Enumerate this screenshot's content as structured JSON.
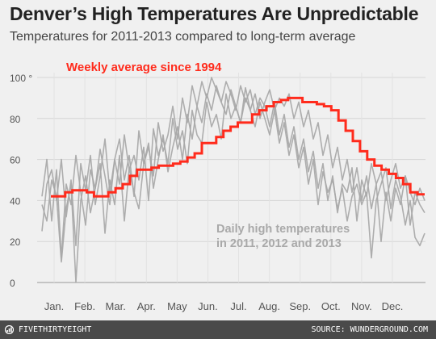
{
  "header": {
    "title": "Denver’s High Temperatures Are Unpredictable",
    "subtitle": "Temperatures for 2011-2013 compared to long-term average"
  },
  "footer": {
    "brand": "FIVETHIRTYEIGHT",
    "source": "SOURCE: WUNDERGROUND.COM",
    "logo_icon": "fivethirtyeight-logo-icon"
  },
  "chart_data": {
    "type": "line",
    "x_unit": "week of year",
    "xlim": [
      1,
      52
    ],
    "ylim": [
      0,
      100
    ],
    "y_ticks": [
      0,
      20,
      40,
      60,
      80,
      100
    ],
    "y_tick_labels": [
      "0",
      "20",
      "40",
      "60",
      "80",
      "100 °"
    ],
    "months": [
      "Jan.",
      "Feb.",
      "Mar.",
      "Apr.",
      "May",
      "Jun.",
      "Jul.",
      "Aug.",
      "Sep.",
      "Oct.",
      "Nov.",
      "Dec."
    ],
    "grid": true,
    "colors": {
      "average": "#ff2b1c",
      "daily": "#a9a9a9",
      "grid": "#d6d6d6"
    },
    "annotations": {
      "average_label": "Weekly average since 1994",
      "daily_label_line1": "Daily high temperatures",
      "daily_label_line2": "in 2011, 2012 and 2013"
    },
    "average_series": {
      "name": "Weekly average since 1994",
      "values": [
        42,
        42,
        44,
        45,
        45,
        44,
        42,
        42,
        44,
        46,
        48,
        52,
        55,
        55,
        56,
        57,
        57,
        58,
        59,
        61,
        63,
        68,
        68,
        71,
        74,
        76,
        78,
        78,
        82,
        84,
        86,
        88,
        89,
        90,
        90,
        88,
        88,
        87,
        86,
        84,
        79,
        74,
        69,
        64,
        60,
        57,
        55,
        53,
        51,
        48,
        44,
        43
      ]
    },
    "daily_series": [
      {
        "year": "2011",
        "values": [
          25,
          48,
          55,
          40,
          60,
          32,
          50,
          18,
          58,
          45,
          62,
          38,
          52,
          70,
          44,
          60,
          48,
          72,
          55,
          62,
          50,
          66,
          40,
          75,
          62,
          70,
          58,
          80,
          65,
          74,
          58,
          84,
          72,
          68,
          88,
          76,
          82,
          70,
          92,
          80,
          86,
          78,
          95,
          84,
          92,
          80,
          88,
          94,
          84,
          90,
          86,
          92,
          80,
          88,
          76,
          84,
          70,
          78,
          62,
          72,
          56,
          66,
          50,
          60,
          44,
          56,
          40,
          52,
          36,
          48,
          20,
          44,
          30,
          46,
          38,
          52,
          28,
          44,
          38,
          34
        ]
      },
      {
        "year": "2012",
        "values": [
          42,
          60,
          30,
          55,
          12,
          48,
          38,
          62,
          44,
          28,
          55,
          46,
          65,
          52,
          38,
          60,
          70,
          50,
          62,
          42,
          74,
          58,
          66,
          52,
          78,
          64,
          72,
          86,
          70,
          90,
          78,
          96,
          86,
          98,
          90,
          100,
          94,
          88,
          98,
          92,
          84,
          96,
          88,
          94,
          82,
          90,
          86,
          76,
          88,
          72,
          82,
          66,
          76,
          60,
          70,
          54,
          64,
          46,
          58,
          40,
          52,
          34,
          48,
          44,
          56,
          30,
          50,
          42,
          58,
          48,
          54,
          40,
          50,
          58,
          46,
          52,
          44,
          38,
          46,
          40
        ]
      },
      {
        "year": "2013",
        "values": [
          38,
          30,
          50,
          42,
          10,
          36,
          48,
          0,
          40,
          52,
          34,
          46,
          58,
          24,
          50,
          38,
          62,
          30,
          56,
          44,
          36,
          58,
          68,
          46,
          60,
          72,
          54,
          66,
          76,
          60,
          82,
          70,
          86,
          78,
          92,
          84,
          96,
          88,
          82,
          94,
          86,
          78,
          90,
          84,
          76,
          88,
          80,
          72,
          84,
          68,
          78,
          62,
          72,
          56,
          66,
          48,
          60,
          38,
          54,
          44,
          50,
          36,
          46,
          30,
          42,
          48,
          38,
          44,
          12,
          40,
          48,
          56,
          36,
          50,
          42,
          28,
          40,
          22,
          18,
          24
        ]
      }
    ]
  }
}
